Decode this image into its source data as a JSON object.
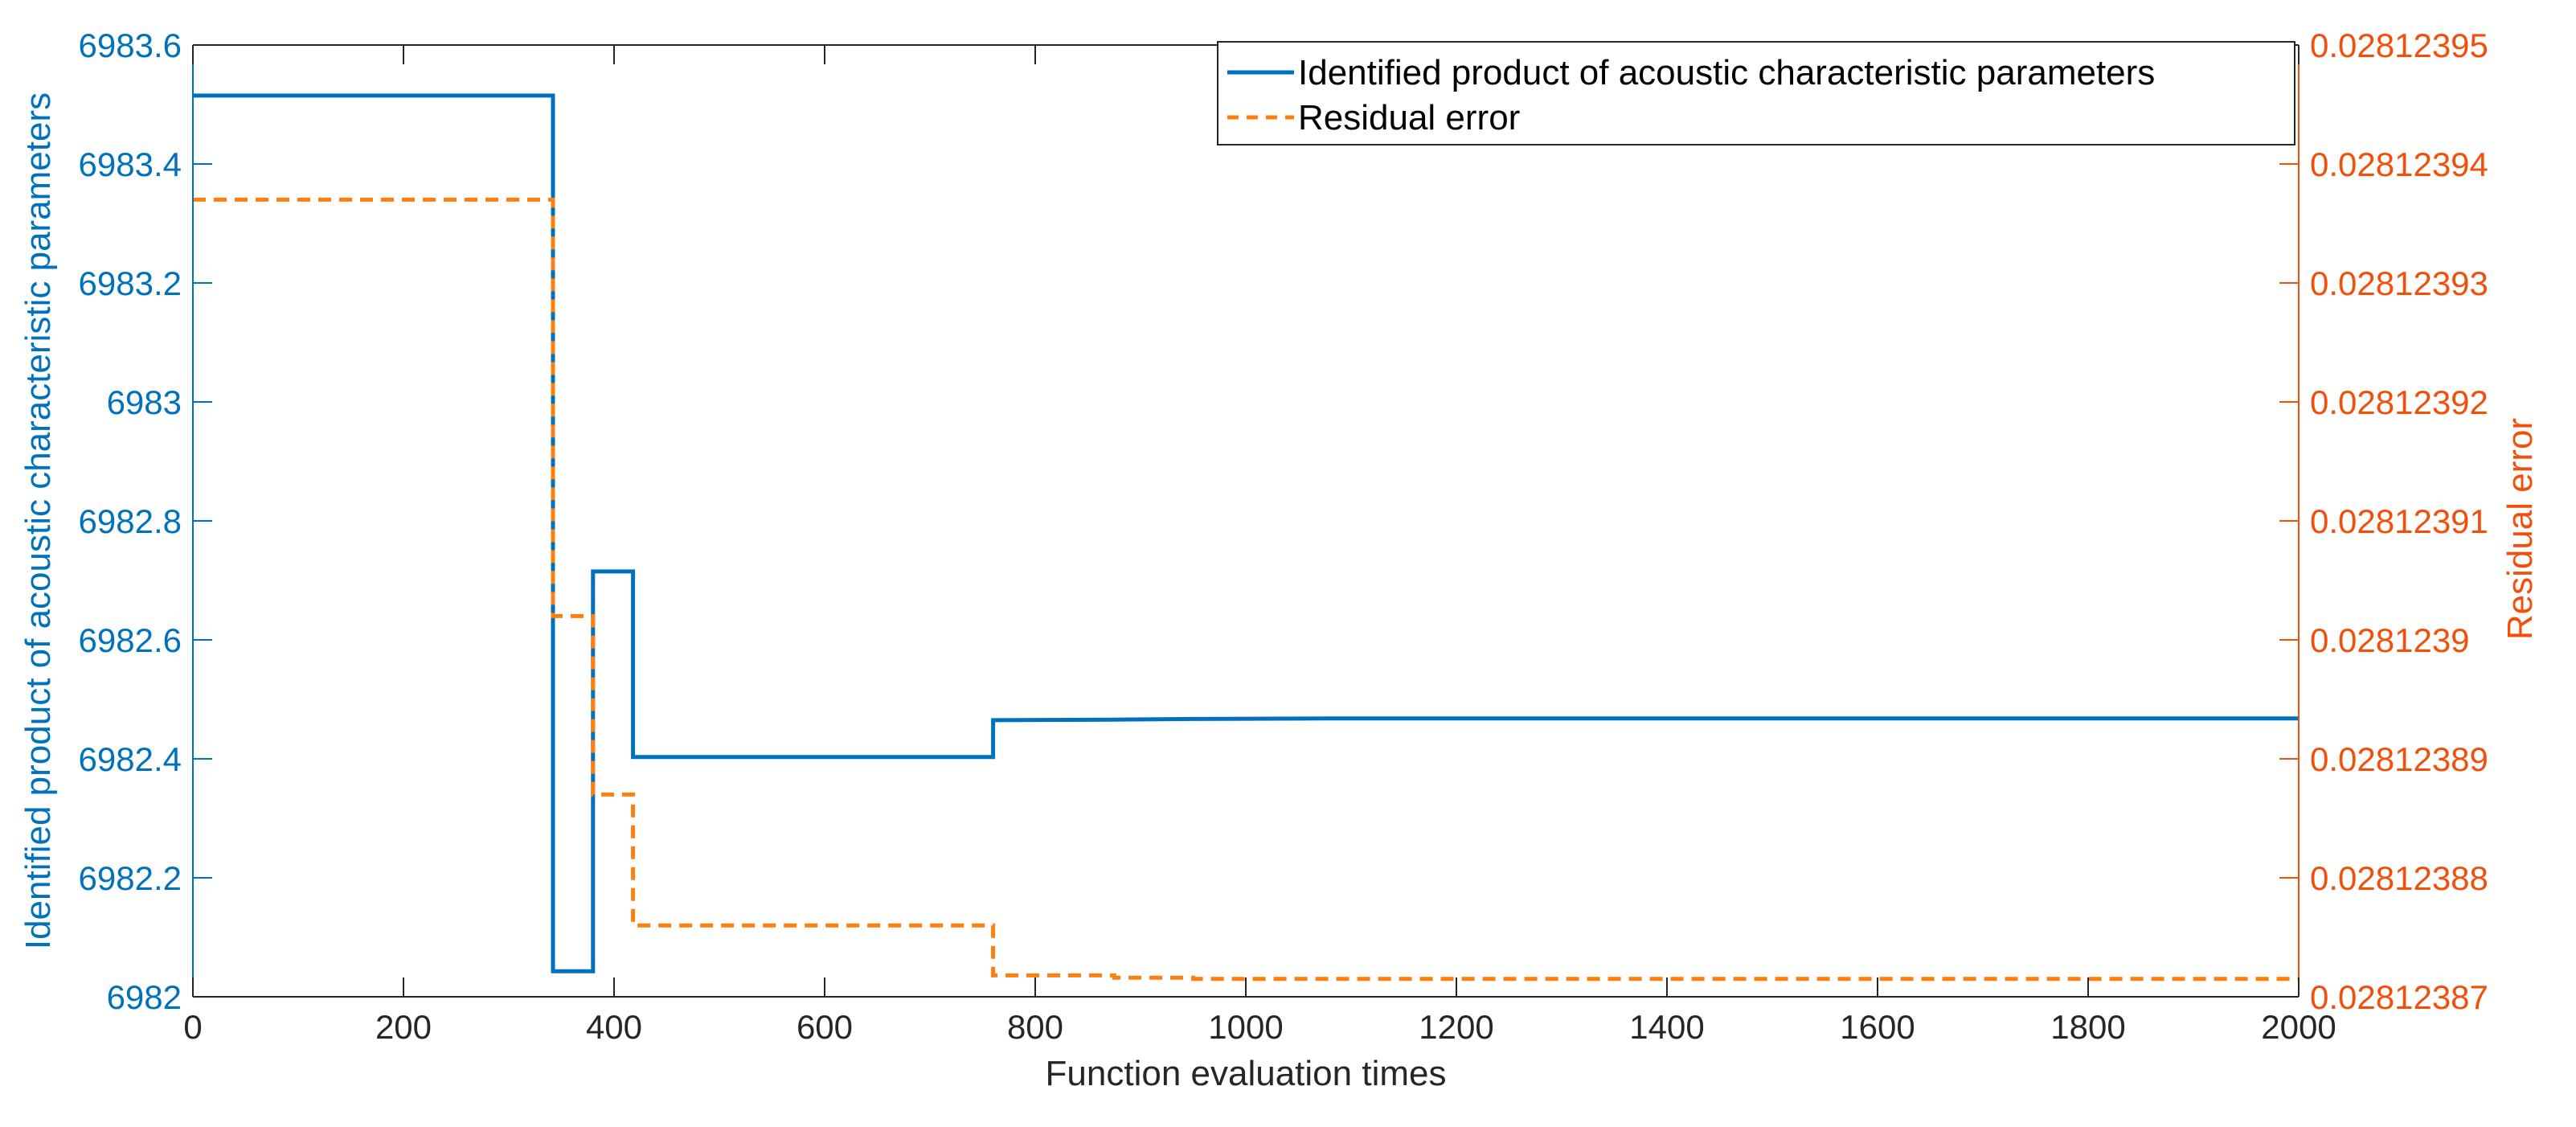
{
  "chart_data": {
    "type": "line",
    "xlabel": "Function evaluation times",
    "ylabel_left": "Identified product of acoustic characteristic parameters",
    "ylabel_right": "Residual error",
    "xlim": [
      0,
      2000
    ],
    "ylim_left": [
      6982,
      6983.6
    ],
    "ylim_right": [
      0.02812387,
      0.02812395
    ],
    "x_ticks": [
      "0",
      "200",
      "400",
      "600",
      "800",
      "1000",
      "1200",
      "1400",
      "1600",
      "1800",
      "2000"
    ],
    "x_tick_values": [
      0,
      200,
      400,
      600,
      800,
      1000,
      1200,
      1400,
      1600,
      1800,
      2000
    ],
    "y_left_ticks": [
      "6982",
      "6982.2",
      "6982.4",
      "6982.6",
      "6982.8",
      "6983",
      "6983.2",
      "6983.4",
      "6983.6"
    ],
    "y_left_tick_values": [
      6982,
      6982.2,
      6982.4,
      6982.6,
      6982.8,
      6983,
      6983.2,
      6983.4,
      6983.6
    ],
    "y_right_ticks": [
      "0.02812387",
      "0.02812388",
      "0.02812389",
      "0.0281239",
      "0.02812391",
      "0.02812392",
      "0.02812393",
      "0.02812394",
      "0.02812395"
    ],
    "y_right_tick_values": [
      0.02812387,
      0.02812388,
      0.02812389,
      0.0281239,
      0.02812391,
      0.02812392,
      0.02812393,
      0.02812394,
      0.02812395
    ],
    "grid": false,
    "legend_position": "top-right",
    "series": [
      {
        "name": "Identified product of acoustic characteristic parameters",
        "axis": "left",
        "style": "solid",
        "color": "#0072BD",
        "x": [
          0,
          342,
          342,
          380,
          380,
          418,
          418,
          760,
          760,
          875,
          950,
          1100,
          1400,
          2000
        ],
        "y": [
          6983.515,
          6983.515,
          6982.043,
          6982.043,
          6982.715,
          6982.715,
          6982.403,
          6982.403,
          6982.465,
          6982.466,
          6982.467,
          6982.468,
          6982.468,
          6982.468
        ]
      },
      {
        "name": "Residual error",
        "axis": "right",
        "style": "dashed",
        "color": "#EDB120",
        "x": [
          0,
          342,
          342,
          380,
          380,
          418,
          418,
          760,
          760,
          875,
          875,
          950,
          950,
          2000
        ],
        "y": [
          0.028123937,
          0.028123937,
          0.028123902,
          0.028123902,
          0.028123887,
          0.028123887,
          0.028123876,
          0.028123876,
          0.0281238718,
          0.0281238718,
          0.0281238716,
          0.0281238716,
          0.0281238715,
          0.0281238715
        ]
      }
    ],
    "colors": {
      "left_axis": "#0072BD",
      "right_axis": "#F2500A",
      "series1": "#0072BD",
      "series2": "#FF7F0E",
      "bottom_axis": "#262626"
    }
  }
}
